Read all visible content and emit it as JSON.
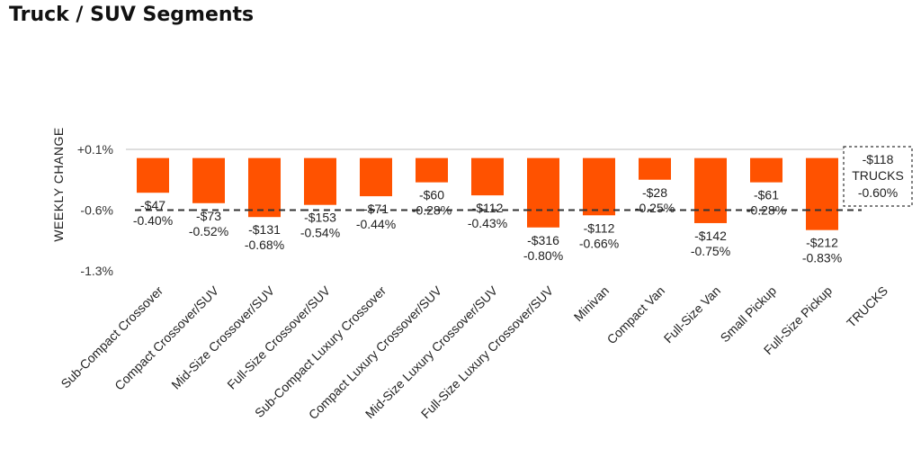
{
  "page": {
    "title": "Truck / SUV Segments"
  },
  "chart_data": {
    "type": "bar",
    "title": "Truck / SUV Segments",
    "ylabel": "WEEKLY CHANGE",
    "xlabel": "",
    "ylim": [
      -1.3,
      0.1
    ],
    "yticks": [
      "+0.1%",
      "-0.6%",
      "-1.3%"
    ],
    "yticks_values": [
      0.1,
      -0.6,
      -1.3
    ],
    "bar_color": "#ff5200",
    "reference_line": {
      "value": -0.6,
      "style": "dashed",
      "color": "#333333"
    },
    "categories": [
      "Sub-Compact Crossover",
      "Compact Crossover/SUV",
      "Mid-Size Crossover/SUV",
      "Full-Size Crossover/SUV",
      "Sub-Compact Luxury Crossover",
      "Compact Luxury Crossover/SUV",
      "Mid-Size Luxury Crossover/SUV",
      "Full-Size Luxury Crossover/SUV",
      "Minivan",
      "Compact Van",
      "Full-Size Van",
      "Small Pickup",
      "Full-Size Pickup",
      "TRUCKS"
    ],
    "values": [
      -0.4,
      -0.52,
      -0.68,
      -0.54,
      -0.44,
      -0.28,
      -0.43,
      -0.8,
      -0.66,
      -0.25,
      -0.75,
      -0.28,
      -0.83,
      -0.6
    ],
    "dollar_labels": [
      "-$47",
      "-$73",
      "-$131",
      "-$153",
      "-$71",
      "-$60",
      "-$112",
      "-$316",
      "-$112",
      "-$28",
      "-$142",
      "-$61",
      "-$212",
      "-$118"
    ],
    "percent_labels": [
      "-0.40%",
      "-0.52%",
      "-0.68%",
      "-0.54%",
      "-0.44%",
      "-0.28%",
      "-0.43%",
      "-0.80%",
      "-0.66%",
      "-0.25%",
      "-0.75%",
      "-0.28%",
      "-0.83%",
      "-0.60%"
    ],
    "summary": {
      "dollar": "-$118",
      "name": "TRUCKS",
      "percent": "-0.60%"
    }
  }
}
